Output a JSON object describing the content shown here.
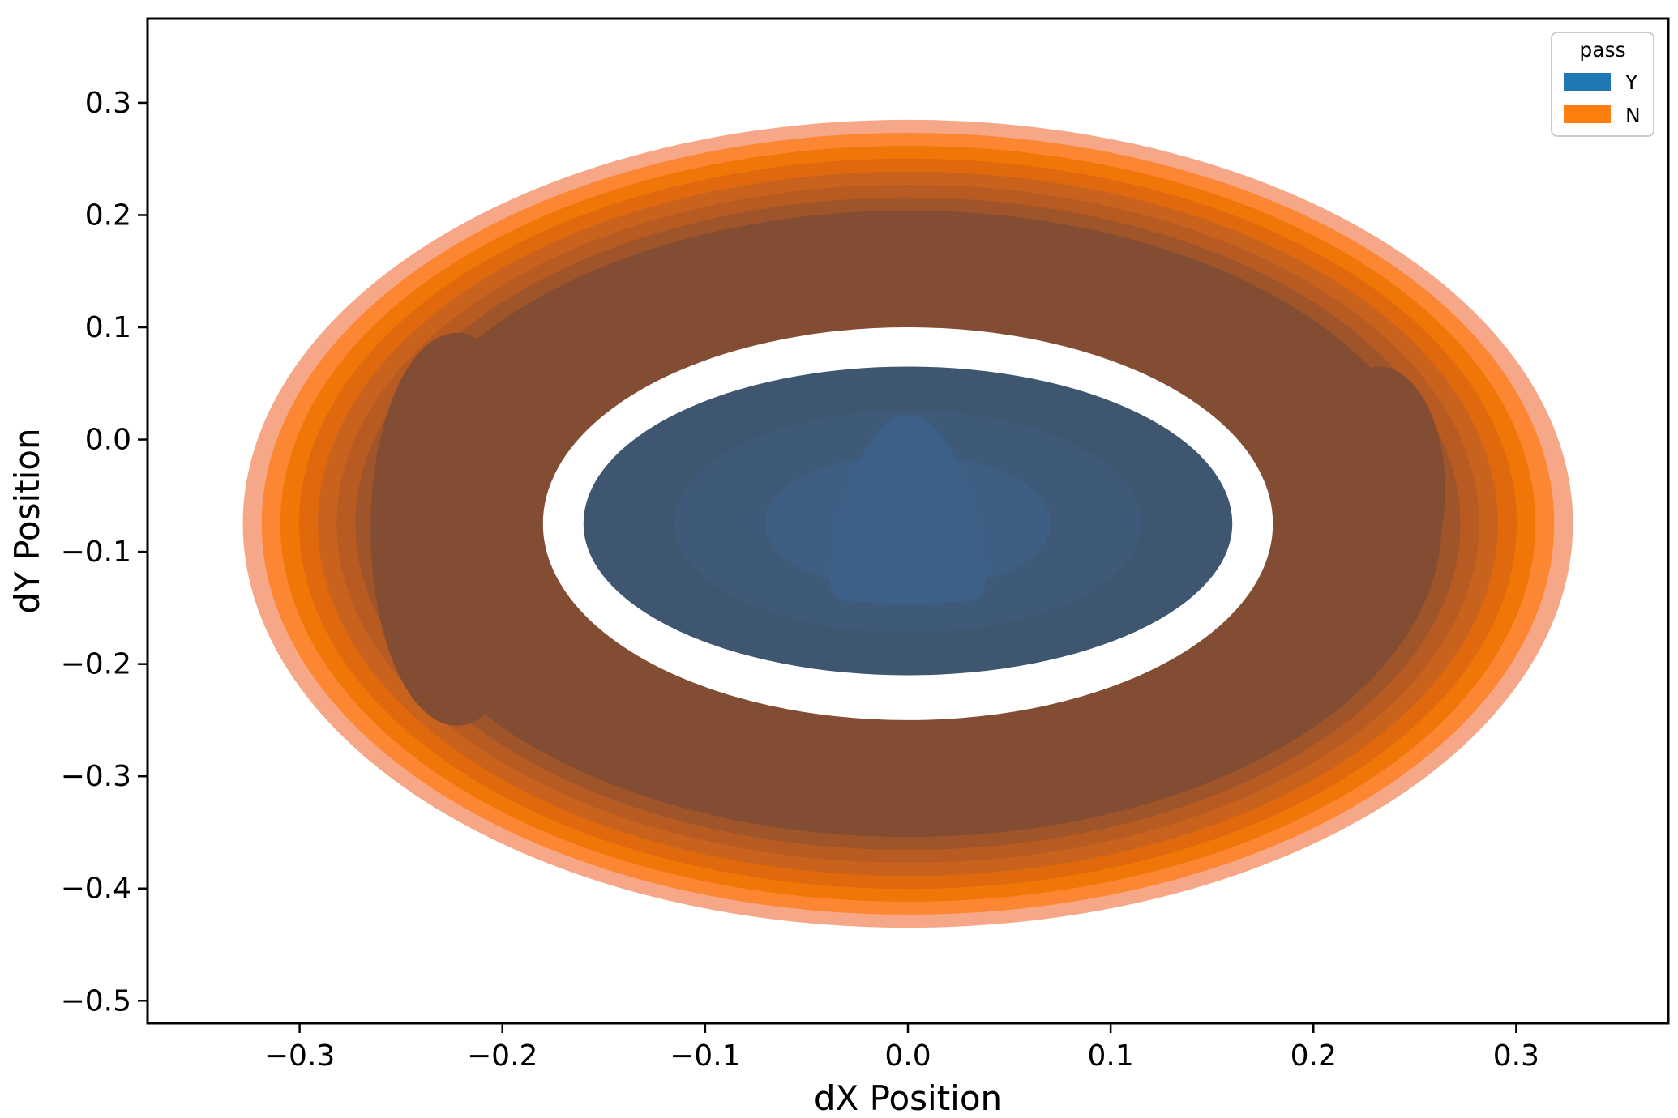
{
  "chart_data": {
    "type": "kde-contour",
    "xlabel": "dX Position",
    "ylabel": "dY Position",
    "xlim": [
      -0.375,
      0.375
    ],
    "ylim": [
      -0.52,
      0.375
    ],
    "xticks": [
      -0.3,
      -0.2,
      -0.1,
      0.0,
      0.1,
      0.2,
      0.3
    ],
    "xtick_labels": [
      "−0.3",
      "−0.2",
      "−0.1",
      "0.0",
      "0.1",
      "0.2",
      "0.3"
    ],
    "yticks": [
      0.3,
      0.2,
      0.1,
      0.0,
      -0.1,
      -0.2,
      -0.3,
      -0.4,
      -0.5
    ],
    "ytick_labels": [
      "0.3",
      "0.2",
      "0.1",
      "0.0",
      "−0.1",
      "−0.2",
      "−0.3",
      "−0.4",
      "−0.5"
    ],
    "legend": {
      "title": "pass",
      "position": "top-right",
      "entries": [
        {
          "label": "Y",
          "color": "#1f77b4"
        },
        {
          "label": "N",
          "color": "#ff7f0e"
        }
      ]
    },
    "series": [
      {
        "name": "N",
        "color": "#ff7f0e",
        "center": [
          0.0,
          -0.075
        ],
        "outer_extent": {
          "x": [
            -0.328,
            0.328
          ],
          "y": [
            -0.435,
            0.285
          ]
        },
        "inner_hole_extent": {
          "x": [
            -0.18,
            0.18
          ],
          "y": [
            -0.25,
            0.1
          ]
        },
        "level_colors": [
          "#f6a788",
          "#fd8633",
          "#f07608",
          "#e0690d",
          "#c9621d",
          "#b85b22",
          "#a0542a",
          "#834d33"
        ],
        "peak_regions": [
          {
            "side": "left",
            "x": [
              -0.265,
              -0.18
            ],
            "y": [
              -0.255,
              0.095
            ]
          },
          {
            "side": "right",
            "x": [
              0.2,
              0.265
            ],
            "y": [
              -0.155,
              0.065
            ]
          }
        ]
      },
      {
        "name": "Y",
        "color": "#1f77b4",
        "center": [
          0.0,
          -0.075
        ],
        "outer_extent": {
          "x": [
            -0.16,
            0.16
          ],
          "y": [
            -0.21,
            0.065
          ]
        },
        "level_colors": [
          "#3e5670",
          "#3e5a78",
          "#3e5e83"
        ],
        "peak_region": {
          "x": [
            -0.03,
            0.03
          ],
          "y": [
            -0.148,
            0.022
          ]
        }
      }
    ]
  }
}
